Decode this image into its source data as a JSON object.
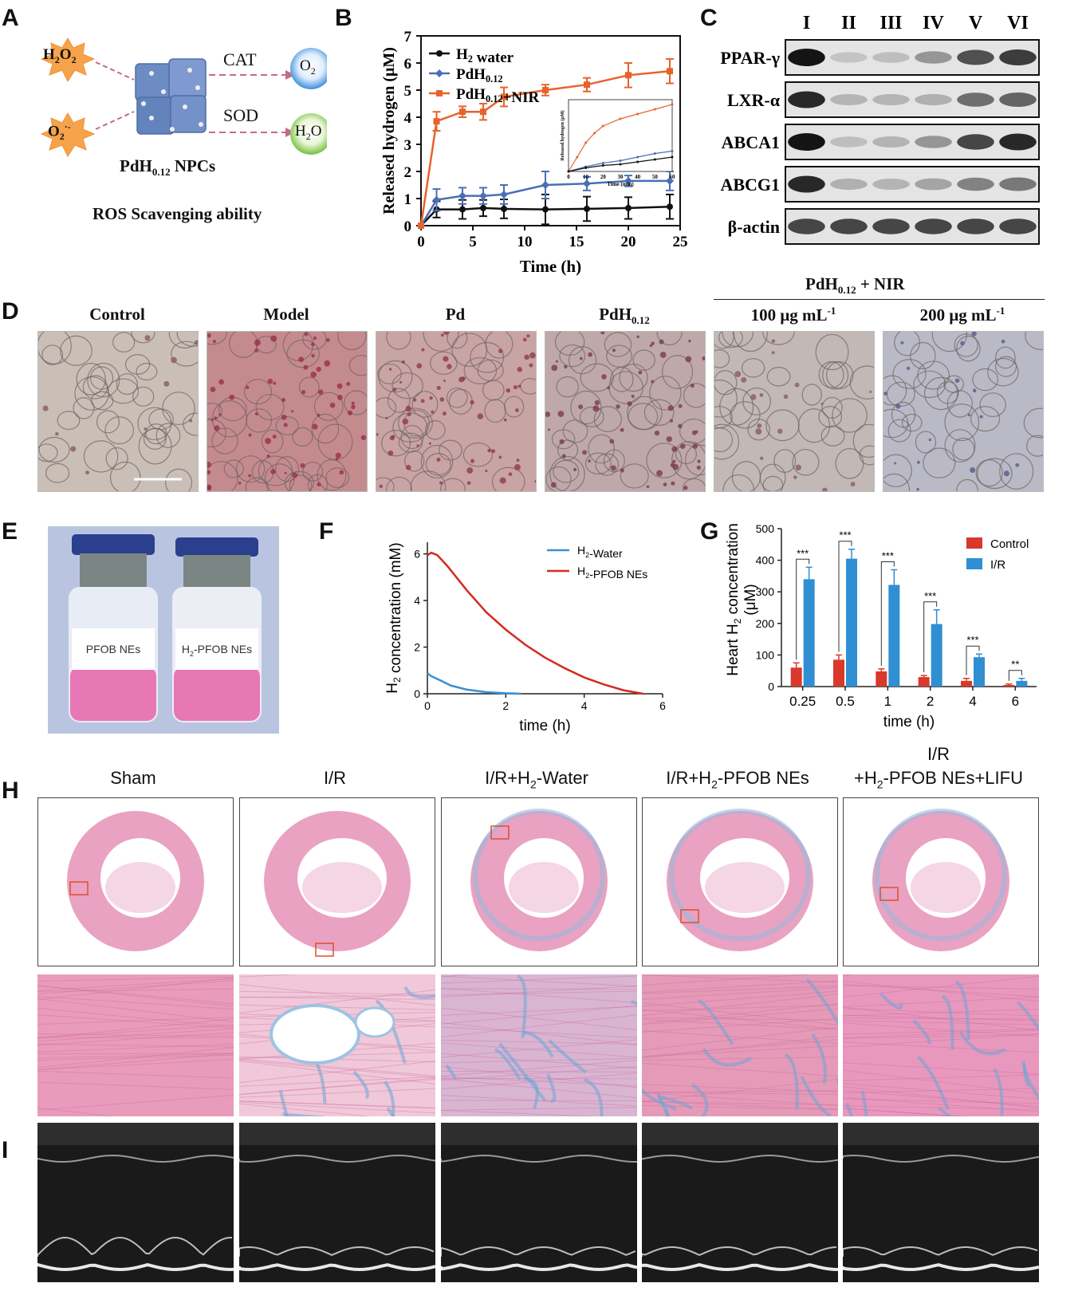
{
  "panels": {
    "A": "A",
    "B": "B",
    "C": "C",
    "D": "D",
    "E": "E",
    "F": "F",
    "G": "G",
    "H": "H",
    "I": "I"
  },
  "a": {
    "h2o2": "H2O2",
    "o2rad": "O2·-",
    "cat": "CAT",
    "sod": "SOD",
    "o2": "O2",
    "h2o": "H2O",
    "npc_label": "PdH0.12 NPCs",
    "caption": "ROS Scavenging ability"
  },
  "c": {
    "lanes": [
      "I",
      "II",
      "III",
      "IV",
      "V",
      "VI"
    ],
    "proteins": [
      "PPAR-γ",
      "LXR-α",
      "ABCA1",
      "ABCG1",
      "β-actin"
    ],
    "band_intensity": [
      [
        1.0,
        0.12,
        0.15,
        0.35,
        0.7,
        0.8
      ],
      [
        0.9,
        0.2,
        0.2,
        0.22,
        0.55,
        0.6
      ],
      [
        1.0,
        0.15,
        0.2,
        0.35,
        0.75,
        0.9
      ],
      [
        0.9,
        0.22,
        0.2,
        0.28,
        0.45,
        0.5
      ],
      [
        0.75,
        0.75,
        0.75,
        0.75,
        0.75,
        0.75
      ]
    ]
  },
  "d": {
    "group_header": "PdH0.12 + NIR",
    "labels": [
      "Control",
      "Model",
      "Pd",
      "PdH0.12",
      "100 μg mL-1",
      "200 μg mL-1"
    ]
  },
  "e": {
    "vial_labels": [
      "PFOB NEs",
      "H2-PFOB NEs"
    ]
  },
  "h": {
    "labels": [
      "Sham",
      "I/R",
      "I/R+H2-Water",
      "I/R+H2-PFOB NEs",
      "I/R",
      "+H2-PFOB NEs+LIFU"
    ]
  },
  "chart_data": [
    {
      "id": "B",
      "type": "line",
      "xlabel": "Time (h)",
      "ylabel": "Released hydrogen (μM)",
      "xlim": [
        0,
        25
      ],
      "ylim": [
        0,
        7
      ],
      "xticks": [
        0,
        5,
        10,
        15,
        20,
        25
      ],
      "yticks": [
        0,
        1,
        2,
        3,
        4,
        5,
        6,
        7
      ],
      "legend_position": "top-left",
      "series": [
        {
          "name": "H2 water",
          "color": "#111111",
          "marker": "circle",
          "x": [
            0,
            1.5,
            4,
            6,
            8,
            12,
            16,
            20,
            24
          ],
          "y": [
            0,
            0.6,
            0.6,
            0.65,
            0.62,
            0.6,
            0.62,
            0.65,
            0.7
          ],
          "err": [
            0,
            0.3,
            0.35,
            0.3,
            0.35,
            0.55,
            0.45,
            0.4,
            0.45
          ]
        },
        {
          "name": "PdH0.12",
          "color": "#4a6fb5",
          "marker": "diamond",
          "x": [
            0,
            1.5,
            4,
            6,
            8,
            12,
            16,
            20,
            24
          ],
          "y": [
            0,
            0.95,
            1.1,
            1.1,
            1.15,
            1.5,
            1.55,
            1.65,
            1.65
          ],
          "err": [
            0,
            0.4,
            0.3,
            0.3,
            0.35,
            0.5,
            0.25,
            0.2,
            0.35
          ]
        },
        {
          "name": "PdH0.12+NIR",
          "color": "#e8622c",
          "marker": "square",
          "x": [
            0,
            1.5,
            4,
            6,
            8,
            12,
            16,
            20,
            24
          ],
          "y": [
            0,
            3.85,
            4.2,
            4.2,
            4.75,
            5.0,
            5.2,
            5.55,
            5.7
          ],
          "err": [
            0,
            0.35,
            0.2,
            0.3,
            0.35,
            0.2,
            0.25,
            0.45,
            0.45
          ]
        }
      ],
      "inset": {
        "xlabel": "Time (min)",
        "ylabel": "Released hydrogen (μM)",
        "xticks": [
          0,
          10,
          20,
          30,
          40,
          50,
          60
        ],
        "series": [
          {
            "color": "#e8622c",
            "x": [
              0,
              5,
              10,
              15,
              20,
              30,
              40,
              50,
              60
            ],
            "y": [
              0,
              0.6,
              1.2,
              1.6,
              1.9,
              2.2,
              2.4,
              2.6,
              2.8
            ]
          },
          {
            "color": "#4a6fb5",
            "x": [
              0,
              10,
              20,
              30,
              40,
              50,
              60
            ],
            "y": [
              0,
              0.2,
              0.35,
              0.45,
              0.6,
              0.75,
              0.85
            ]
          },
          {
            "color": "#111111",
            "x": [
              0,
              10,
              20,
              30,
              40,
              50,
              60
            ],
            "y": [
              0,
              0.15,
              0.25,
              0.3,
              0.4,
              0.5,
              0.6
            ]
          }
        ]
      }
    },
    {
      "id": "F",
      "type": "line",
      "xlabel": "time (h)",
      "ylabel": "H2 concentration (mM)",
      "xlim": [
        0,
        6
      ],
      "ylim": [
        0,
        6.5
      ],
      "xticks": [
        0,
        2,
        4,
        6
      ],
      "yticks": [
        0,
        2,
        4,
        6
      ],
      "legend_position": "top-right",
      "series": [
        {
          "name": "H2-Water",
          "color": "#3a8fd0",
          "x": [
            0,
            0.1,
            0.3,
            0.6,
            1.0,
            1.5,
            2.0,
            2.4
          ],
          "y": [
            0.88,
            0.75,
            0.6,
            0.35,
            0.18,
            0.07,
            0.02,
            0.0
          ]
        },
        {
          "name": "H2-PFOB NEs",
          "color": "#d42a20",
          "x": [
            0,
            0.1,
            0.25,
            0.5,
            1.0,
            1.5,
            2.0,
            2.5,
            3.0,
            3.5,
            4.0,
            4.5,
            5.0,
            5.5
          ],
          "y": [
            5.95,
            6.05,
            5.95,
            5.5,
            4.45,
            3.5,
            2.75,
            2.1,
            1.55,
            1.1,
            0.7,
            0.4,
            0.15,
            0.0
          ]
        }
      ]
    },
    {
      "id": "G",
      "type": "bar",
      "xlabel": "time (h)",
      "ylabel": "Heart H2 concentration (μM)",
      "ylim": [
        0,
        500
      ],
      "yticks": [
        0,
        100,
        200,
        300,
        400,
        500
      ],
      "categories": [
        "0.25",
        "0.5",
        "1",
        "2",
        "4",
        "6"
      ],
      "legend_position": "top-right",
      "series": [
        {
          "name": "Control",
          "color": "#d9382c",
          "values": [
            60,
            85,
            48,
            30,
            18,
            5
          ],
          "err": [
            15,
            15,
            8,
            5,
            8,
            3
          ]
        },
        {
          "name": "I/R",
          "color": "#2f8fd2",
          "values": [
            340,
            405,
            322,
            198,
            93,
            18
          ],
          "err": [
            38,
            30,
            48,
            45,
            10,
            8
          ]
        }
      ],
      "significance": [
        "***",
        "***",
        "***",
        "***",
        "***",
        "**"
      ]
    }
  ]
}
